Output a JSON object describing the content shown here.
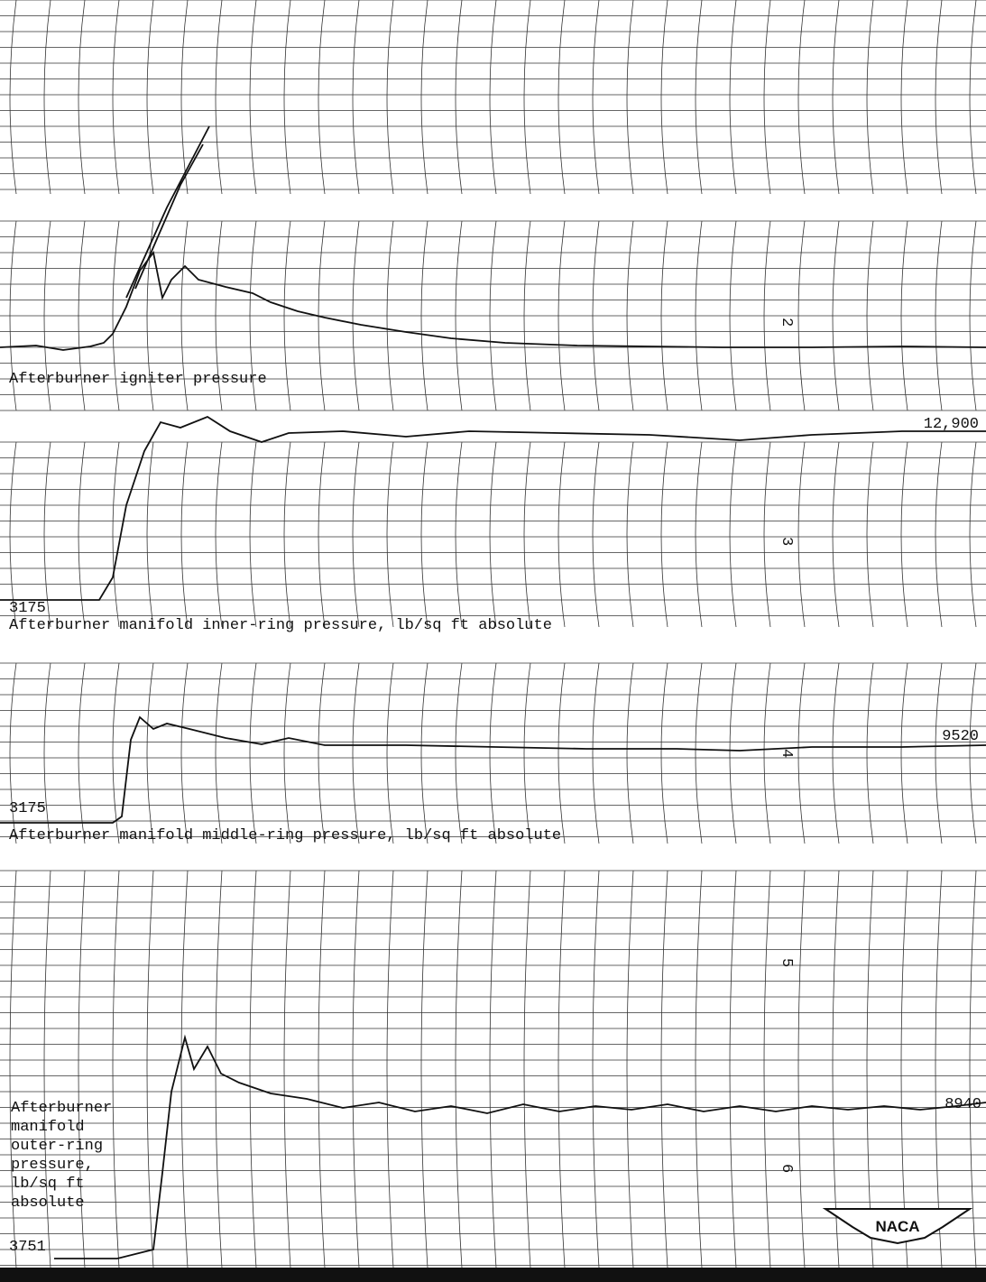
{
  "panels": [
    {
      "channel": "2",
      "label": "Afterburner igniter pressure"
    },
    {
      "channel": "3",
      "label": "Afterburner manifold inner-ring pressure, lb/sq ft absolute",
      "high": "12,900",
      "low": "3175"
    },
    {
      "channel": "4",
      "label": "Afterburner manifold middle-ring pressure, lb/sq ft absolute",
      "high": "9520",
      "low": "3175"
    },
    {
      "channel": "5"
    },
    {
      "channel": "6",
      "label_lines": [
        "Afterburner",
        "manifold",
        "outer-ring",
        "pressure,",
        "lb/sq ft",
        "absolute"
      ],
      "high": "8940",
      "low": "3751"
    }
  ],
  "logo": "NACA"
}
